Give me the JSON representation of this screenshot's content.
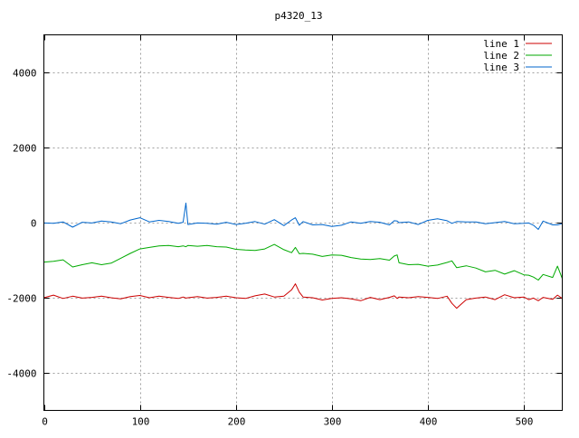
{
  "chart_data": {
    "type": "line",
    "title": "p4320_13",
    "xlabel": "",
    "ylabel": "",
    "xlim": [
      0,
      540
    ],
    "ylim": [
      -5000,
      5000
    ],
    "x_ticks": [
      0,
      100,
      200,
      300,
      400,
      500
    ],
    "y_ticks": [
      -4000,
      -2000,
      0,
      2000,
      4000
    ],
    "grid": true,
    "legend_position": "top-right",
    "x": [
      0,
      10,
      20,
      30,
      40,
      50,
      60,
      70,
      80,
      90,
      100,
      110,
      120,
      130,
      140,
      145,
      148,
      150,
      160,
      170,
      180,
      190,
      200,
      210,
      220,
      230,
      240,
      250,
      258,
      262,
      266,
      270,
      280,
      290,
      300,
      310,
      320,
      330,
      340,
      350,
      360,
      365,
      368,
      370,
      380,
      390,
      400,
      410,
      420,
      425,
      430,
      440,
      450,
      460,
      470,
      480,
      490,
      500,
      505,
      510,
      515,
      520,
      530,
      535,
      540
    ],
    "series": [
      {
        "name": "line 1",
        "color": "#cc0000",
        "values": [
          -2000,
          -1930,
          -2020,
          -1960,
          -2010,
          -1990,
          -1960,
          -2000,
          -2030,
          -1970,
          -1940,
          -2000,
          -1960,
          -1990,
          -2020,
          -1980,
          -2010,
          -2000,
          -1970,
          -2010,
          -1990,
          -1960,
          -2000,
          -2020,
          -1950,
          -1900,
          -1980,
          -1960,
          -1790,
          -1630,
          -1850,
          -1980,
          -2000,
          -2060,
          -2020,
          -2000,
          -2030,
          -2080,
          -1990,
          -2050,
          -1990,
          -1950,
          -2020,
          -1980,
          -2000,
          -1970,
          -1990,
          -2020,
          -1960,
          -2150,
          -2280,
          -2050,
          -2010,
          -1980,
          -2050,
          -1920,
          -2000,
          -1980,
          -2050,
          -2010,
          -2080,
          -1990,
          -2040,
          -1930,
          -2020
        ]
      },
      {
        "name": "line 2",
        "color": "#00aa00",
        "values": [
          -1050,
          -1030,
          -990,
          -1180,
          -1120,
          -1070,
          -1120,
          -1080,
          -950,
          -820,
          -700,
          -660,
          -620,
          -610,
          -640,
          -620,
          -640,
          -610,
          -630,
          -610,
          -640,
          -650,
          -710,
          -730,
          -740,
          -700,
          -580,
          -720,
          -800,
          -660,
          -830,
          -820,
          -840,
          -900,
          -860,
          -870,
          -930,
          -970,
          -980,
          -960,
          -1000,
          -890,
          -860,
          -1070,
          -1120,
          -1110,
          -1160,
          -1130,
          -1060,
          -1020,
          -1200,
          -1150,
          -1210,
          -1310,
          -1270,
          -1370,
          -1280,
          -1390,
          -1400,
          -1450,
          -1530,
          -1380,
          -1460,
          -1160,
          -1490
        ]
      },
      {
        "name": "line 3",
        "color": "#0066cc",
        "values": [
          -10,
          -20,
          20,
          -120,
          10,
          -10,
          40,
          20,
          -30,
          70,
          130,
          20,
          60,
          30,
          -20,
          10,
          520,
          -50,
          -10,
          -20,
          -40,
          10,
          -50,
          -20,
          30,
          -40,
          80,
          -80,
          70,
          130,
          -70,
          30,
          -60,
          -50,
          -100,
          -70,
          20,
          -20,
          30,
          10,
          -60,
          50,
          40,
          0,
          20,
          -50,
          60,
          100,
          50,
          -20,
          30,
          20,
          20,
          -30,
          0,
          30,
          -30,
          -20,
          -10,
          -70,
          -180,
          40,
          -60,
          -60,
          -30
        ]
      }
    ]
  }
}
